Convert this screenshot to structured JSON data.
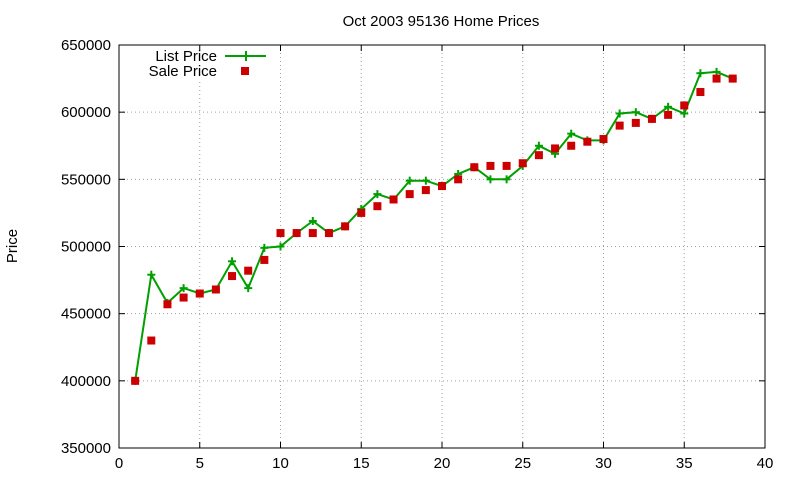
{
  "chart_data": {
    "type": "line",
    "title": "Oct 2003 95136 Home Prices",
    "xlabel": "",
    "ylabel": "Price",
    "xlim": [
      0,
      40
    ],
    "ylim": [
      350000,
      650000
    ],
    "xticks": [
      "0",
      "5",
      "10",
      "15",
      "20",
      "25",
      "30",
      "35",
      "40"
    ],
    "xtick_values": [
      0,
      5,
      10,
      15,
      20,
      25,
      30,
      35,
      40
    ],
    "yticks": [
      "350000",
      "400000",
      "450000",
      "500000",
      "550000",
      "600000",
      "650000"
    ],
    "ytick_values": [
      350000,
      400000,
      450000,
      500000,
      550000,
      600000,
      650000
    ],
    "grid": true,
    "legend_position": "top-left",
    "x": [
      1,
      2,
      3,
      4,
      5,
      6,
      7,
      8,
      9,
      10,
      11,
      12,
      13,
      14,
      15,
      16,
      17,
      18,
      19,
      20,
      21,
      22,
      23,
      24,
      25,
      26,
      27,
      28,
      29,
      30,
      31,
      32,
      33,
      34,
      35,
      36,
      37,
      38
    ],
    "series": [
      {
        "name": "List Price",
        "style": "line-plus",
        "color": "#00a000",
        "values": [
          400000,
          479000,
          458000,
          469000,
          465000,
          468000,
          489000,
          469000,
          499000,
          500000,
          510000,
          519000,
          510000,
          515000,
          528000,
          539000,
          535000,
          549000,
          549000,
          545000,
          554000,
          559000,
          550000,
          550000,
          560000,
          575000,
          569000,
          584000,
          579000,
          579000,
          599000,
          600000,
          595000,
          604000,
          599000,
          629000,
          630000,
          625000
        ]
      },
      {
        "name": "Sale Price",
        "style": "square",
        "color": "#cc0000",
        "values": [
          400000,
          430000,
          457000,
          462000,
          465000,
          468000,
          478000,
          482000,
          490000,
          510000,
          510000,
          510000,
          510000,
          515000,
          525000,
          530000,
          535000,
          539000,
          542000,
          545000,
          550000,
          559000,
          560000,
          560000,
          562000,
          568000,
          573000,
          575000,
          578000,
          580000,
          590000,
          592000,
          595000,
          598000,
          605000,
          615000,
          625000,
          625000
        ]
      }
    ]
  }
}
